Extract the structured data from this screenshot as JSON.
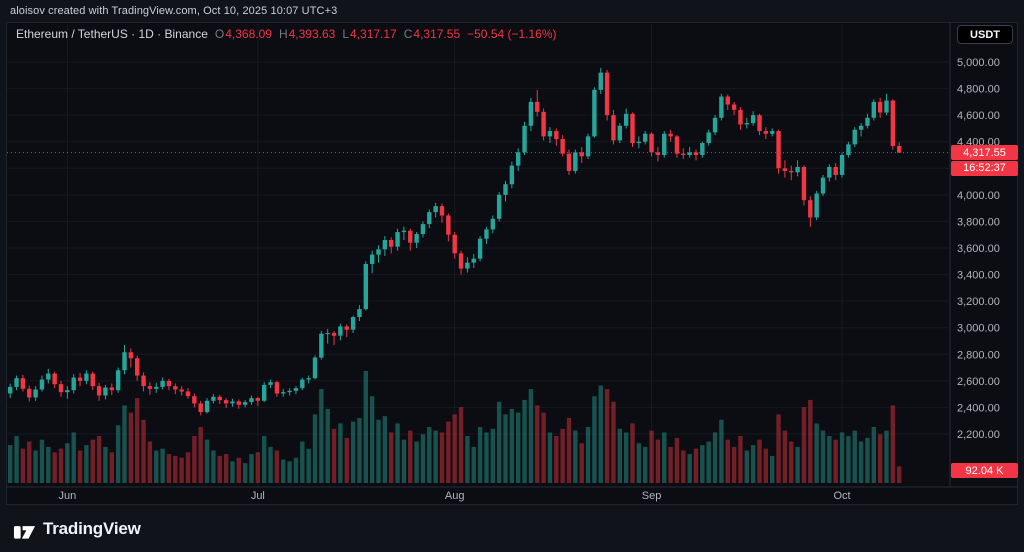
{
  "header": {
    "attribution": "aloisov created with TradingView.com, Oct 10, 2025 10:07 UTC+3"
  },
  "legend": {
    "symbol_text": "Ethereum / TetherUS · 1D · Binance",
    "open_label": "O",
    "open": "4,368.09",
    "high_label": "H",
    "high": "4,393.63",
    "low_label": "L",
    "low": "4,317.17",
    "close_label": "C",
    "close": "4,317.55",
    "change": "−50.54 (−1.16%)"
  },
  "currency_button": {
    "label": "USDT"
  },
  "price_scale": {
    "last_price": "4,317.55",
    "countdown": "16:52:37"
  },
  "volume_badge": "92.04 K",
  "footer": {
    "brand": "TradingView"
  },
  "colors": {
    "up": "#26a69a",
    "down": "#f23645",
    "volume_up": "rgba(38,166,154,0.45)",
    "volume_down": "rgba(242,54,69,0.45)",
    "grid": "rgba(255,255,255,0.05)",
    "axis_text": "#b2b5be",
    "border": "#242a36",
    "badge": "#f23645"
  },
  "chart_data": {
    "type": "candlestick",
    "title": "Ethereum / TetherUS · 1D · Binance",
    "interval": "1D",
    "ylim": [
      2200,
      5000
    ],
    "y_ticks": [
      5000,
      4800,
      4600,
      4400,
      4200,
      4000,
      3800,
      3600,
      3400,
      3200,
      3000,
      2800,
      2600,
      2400,
      2200
    ],
    "x_month_marks": [
      {
        "label": "Jun",
        "index": 9
      },
      {
        "label": "Jul",
        "index": 39
      },
      {
        "label": "Aug",
        "index": 70
      },
      {
        "label": "Sep",
        "index": 101
      },
      {
        "label": "Oct",
        "index": 131
      }
    ],
    "last_close": 4317.55,
    "last_volume": "92.04 K",
    "volume_unit": "K",
    "columns": [
      "open",
      "high",
      "low",
      "close",
      "volume"
    ],
    "candles": [
      [
        2505,
        2580,
        2470,
        2555,
        210
      ],
      [
        2555,
        2640,
        2530,
        2620,
        260
      ],
      [
        2620,
        2645,
        2520,
        2540,
        190
      ],
      [
        2540,
        2565,
        2445,
        2475,
        230
      ],
      [
        2475,
        2560,
        2450,
        2535,
        180
      ],
      [
        2535,
        2640,
        2520,
        2610,
        240
      ],
      [
        2610,
        2690,
        2580,
        2655,
        200
      ],
      [
        2655,
        2670,
        2545,
        2575,
        170
      ],
      [
        2575,
        2600,
        2480,
        2515,
        190
      ],
      [
        2515,
        2560,
        2465,
        2530,
        220
      ],
      [
        2530,
        2650,
        2505,
        2625,
        280
      ],
      [
        2625,
        2660,
        2560,
        2600,
        180
      ],
      [
        2600,
        2680,
        2575,
        2655,
        210
      ],
      [
        2655,
        2670,
        2530,
        2560,
        240
      ],
      [
        2560,
        2585,
        2450,
        2490,
        260
      ],
      [
        2490,
        2570,
        2460,
        2550,
        200
      ],
      [
        2550,
        2580,
        2495,
        2530,
        170
      ],
      [
        2530,
        2700,
        2510,
        2680,
        320
      ],
      [
        2680,
        2870,
        2650,
        2815,
        430
      ],
      [
        2815,
        2845,
        2700,
        2770,
        390
      ],
      [
        2770,
        2790,
        2600,
        2640,
        470
      ],
      [
        2640,
        2665,
        2520,
        2560,
        350
      ],
      [
        2560,
        2590,
        2495,
        2540,
        230
      ],
      [
        2540,
        2585,
        2510,
        2555,
        180
      ],
      [
        2555,
        2625,
        2535,
        2600,
        190
      ],
      [
        2600,
        2615,
        2530,
        2560,
        160
      ],
      [
        2560,
        2580,
        2500,
        2535,
        150
      ],
      [
        2535,
        2560,
        2490,
        2520,
        140
      ],
      [
        2520,
        2545,
        2465,
        2485,
        170
      ],
      [
        2485,
        2505,
        2400,
        2430,
        260
      ],
      [
        2430,
        2450,
        2340,
        2365,
        310
      ],
      [
        2365,
        2470,
        2355,
        2450,
        240
      ],
      [
        2450,
        2500,
        2430,
        2480,
        180
      ],
      [
        2480,
        2495,
        2425,
        2455,
        150
      ],
      [
        2455,
        2470,
        2395,
        2430,
        160
      ],
      [
        2430,
        2465,
        2405,
        2445,
        120
      ],
      [
        2445,
        2460,
        2390,
        2420,
        140
      ],
      [
        2420,
        2455,
        2400,
        2440,
        110
      ],
      [
        2440,
        2490,
        2420,
        2470,
        160
      ],
      [
        2470,
        2480,
        2410,
        2450,
        170
      ],
      [
        2450,
        2590,
        2440,
        2570,
        260
      ],
      [
        2570,
        2610,
        2545,
        2590,
        200
      ],
      [
        2590,
        2600,
        2480,
        2505,
        180
      ],
      [
        2505,
        2540,
        2480,
        2515,
        130
      ],
      [
        2515,
        2545,
        2490,
        2525,
        120
      ],
      [
        2525,
        2560,
        2500,
        2545,
        140
      ],
      [
        2545,
        2625,
        2530,
        2610,
        230
      ],
      [
        2610,
        2640,
        2580,
        2620,
        190
      ],
      [
        2620,
        2790,
        2610,
        2775,
        380
      ],
      [
        2775,
        2975,
        2760,
        2955,
        520
      ],
      [
        2955,
        2990,
        2880,
        2960,
        410
      ],
      [
        2960,
        2975,
        2870,
        2940,
        300
      ],
      [
        2940,
        3030,
        2905,
        3010,
        330
      ],
      [
        3010,
        3025,
        2930,
        2985,
        250
      ],
      [
        2985,
        3090,
        2960,
        3080,
        340
      ],
      [
        3080,
        3170,
        3050,
        3140,
        360
      ],
      [
        3140,
        3500,
        3130,
        3480,
        620
      ],
      [
        3480,
        3580,
        3410,
        3550,
        480
      ],
      [
        3550,
        3620,
        3490,
        3590,
        350
      ],
      [
        3590,
        3690,
        3540,
        3660,
        370
      ],
      [
        3660,
        3680,
        3560,
        3610,
        280
      ],
      [
        3610,
        3745,
        3580,
        3720,
        330
      ],
      [
        3720,
        3760,
        3660,
        3730,
        240
      ],
      [
        3730,
        3745,
        3580,
        3640,
        290
      ],
      [
        3640,
        3720,
        3600,
        3705,
        230
      ],
      [
        3705,
        3800,
        3680,
        3780,
        270
      ],
      [
        3780,
        3890,
        3750,
        3870,
        310
      ],
      [
        3870,
        3940,
        3830,
        3915,
        290
      ],
      [
        3915,
        3935,
        3790,
        3845,
        280
      ],
      [
        3845,
        3860,
        3650,
        3700,
        340
      ],
      [
        3700,
        3720,
        3520,
        3560,
        380
      ],
      [
        3560,
        3580,
        3400,
        3445,
        420
      ],
      [
        3445,
        3530,
        3415,
        3490,
        260
      ],
      [
        3490,
        3555,
        3450,
        3520,
        200
      ],
      [
        3520,
        3690,
        3500,
        3670,
        310
      ],
      [
        3670,
        3760,
        3630,
        3740,
        280
      ],
      [
        3740,
        3845,
        3710,
        3820,
        300
      ],
      [
        3820,
        4020,
        3800,
        4000,
        450
      ],
      [
        4000,
        4105,
        3950,
        4080,
        380
      ],
      [
        4080,
        4250,
        4050,
        4220,
        410
      ],
      [
        4220,
        4350,
        4180,
        4320,
        390
      ],
      [
        4320,
        4550,
        4300,
        4520,
        460
      ],
      [
        4520,
        4730,
        4480,
        4700,
        520
      ],
      [
        4700,
        4790,
        4590,
        4625,
        430
      ],
      [
        4625,
        4650,
        4410,
        4440,
        390
      ],
      [
        4440,
        4510,
        4390,
        4480,
        280
      ],
      [
        4480,
        4500,
        4370,
        4420,
        260
      ],
      [
        4420,
        4450,
        4290,
        4310,
        300
      ],
      [
        4310,
        4340,
        4150,
        4180,
        360
      ],
      [
        4180,
        4340,
        4160,
        4320,
        290
      ],
      [
        4320,
        4360,
        4240,
        4290,
        220
      ],
      [
        4290,
        4460,
        4270,
        4440,
        310
      ],
      [
        4440,
        4810,
        4430,
        4790,
        480
      ],
      [
        4790,
        4956,
        4760,
        4920,
        540
      ],
      [
        4920,
        4940,
        4560,
        4600,
        520
      ],
      [
        4600,
        4640,
        4380,
        4410,
        450
      ],
      [
        4410,
        4540,
        4390,
        4520,
        300
      ],
      [
        4520,
        4650,
        4500,
        4610,
        280
      ],
      [
        4610,
        4620,
        4360,
        4390,
        330
      ],
      [
        4390,
        4440,
        4350,
        4400,
        220
      ],
      [
        4400,
        4480,
        4380,
        4460,
        200
      ],
      [
        4460,
        4470,
        4290,
        4320,
        290
      ],
      [
        4320,
        4360,
        4250,
        4300,
        240
      ],
      [
        4300,
        4480,
        4280,
        4460,
        280
      ],
      [
        4460,
        4490,
        4400,
        4440,
        200
      ],
      [
        4440,
        4450,
        4280,
        4310,
        250
      ],
      [
        4310,
        4350,
        4270,
        4300,
        180
      ],
      [
        4300,
        4360,
        4280,
        4320,
        160
      ],
      [
        4320,
        4340,
        4260,
        4300,
        190
      ],
      [
        4300,
        4400,
        4280,
        4390,
        210
      ],
      [
        4390,
        4490,
        4370,
        4470,
        230
      ],
      [
        4470,
        4600,
        4450,
        4580,
        280
      ],
      [
        4580,
        4760,
        4560,
        4740,
        350
      ],
      [
        4740,
        4755,
        4640,
        4680,
        240
      ],
      [
        4680,
        4700,
        4600,
        4640,
        200
      ],
      [
        4640,
        4660,
        4490,
        4530,
        260
      ],
      [
        4530,
        4580,
        4500,
        4540,
        180
      ],
      [
        4540,
        4630,
        4520,
        4600,
        210
      ],
      [
        4600,
        4610,
        4450,
        4480,
        240
      ],
      [
        4480,
        4510,
        4420,
        4460,
        190
      ],
      [
        4460,
        4500,
        4440,
        4480,
        150
      ],
      [
        4480,
        4490,
        4160,
        4200,
        380
      ],
      [
        4200,
        4260,
        4130,
        4180,
        290
      ],
      [
        4180,
        4220,
        4110,
        4170,
        230
      ],
      [
        4170,
        4260,
        4140,
        4210,
        200
      ],
      [
        4210,
        4220,
        3920,
        3960,
        420
      ],
      [
        3960,
        3990,
        3760,
        3830,
        460
      ],
      [
        3830,
        4030,
        3810,
        4010,
        330
      ],
      [
        4010,
        4150,
        3990,
        4130,
        290
      ],
      [
        4130,
        4230,
        4100,
        4210,
        260
      ],
      [
        4210,
        4240,
        4110,
        4150,
        240
      ],
      [
        4150,
        4320,
        4130,
        4300,
        280
      ],
      [
        4300,
        4400,
        4280,
        4380,
        260
      ],
      [
        4380,
        4510,
        4360,
        4490,
        290
      ],
      [
        4490,
        4540,
        4440,
        4520,
        230
      ],
      [
        4520,
        4610,
        4500,
        4580,
        250
      ],
      [
        4580,
        4720,
        4560,
        4700,
        310
      ],
      [
        4700,
        4730,
        4580,
        4620,
        270
      ],
      [
        4620,
        4760,
        4600,
        4710,
        290
      ],
      [
        4710,
        4720,
        4340,
        4368.09,
        430
      ],
      [
        4368.09,
        4393.63,
        4317.17,
        4317.55,
        92.04
      ]
    ]
  }
}
